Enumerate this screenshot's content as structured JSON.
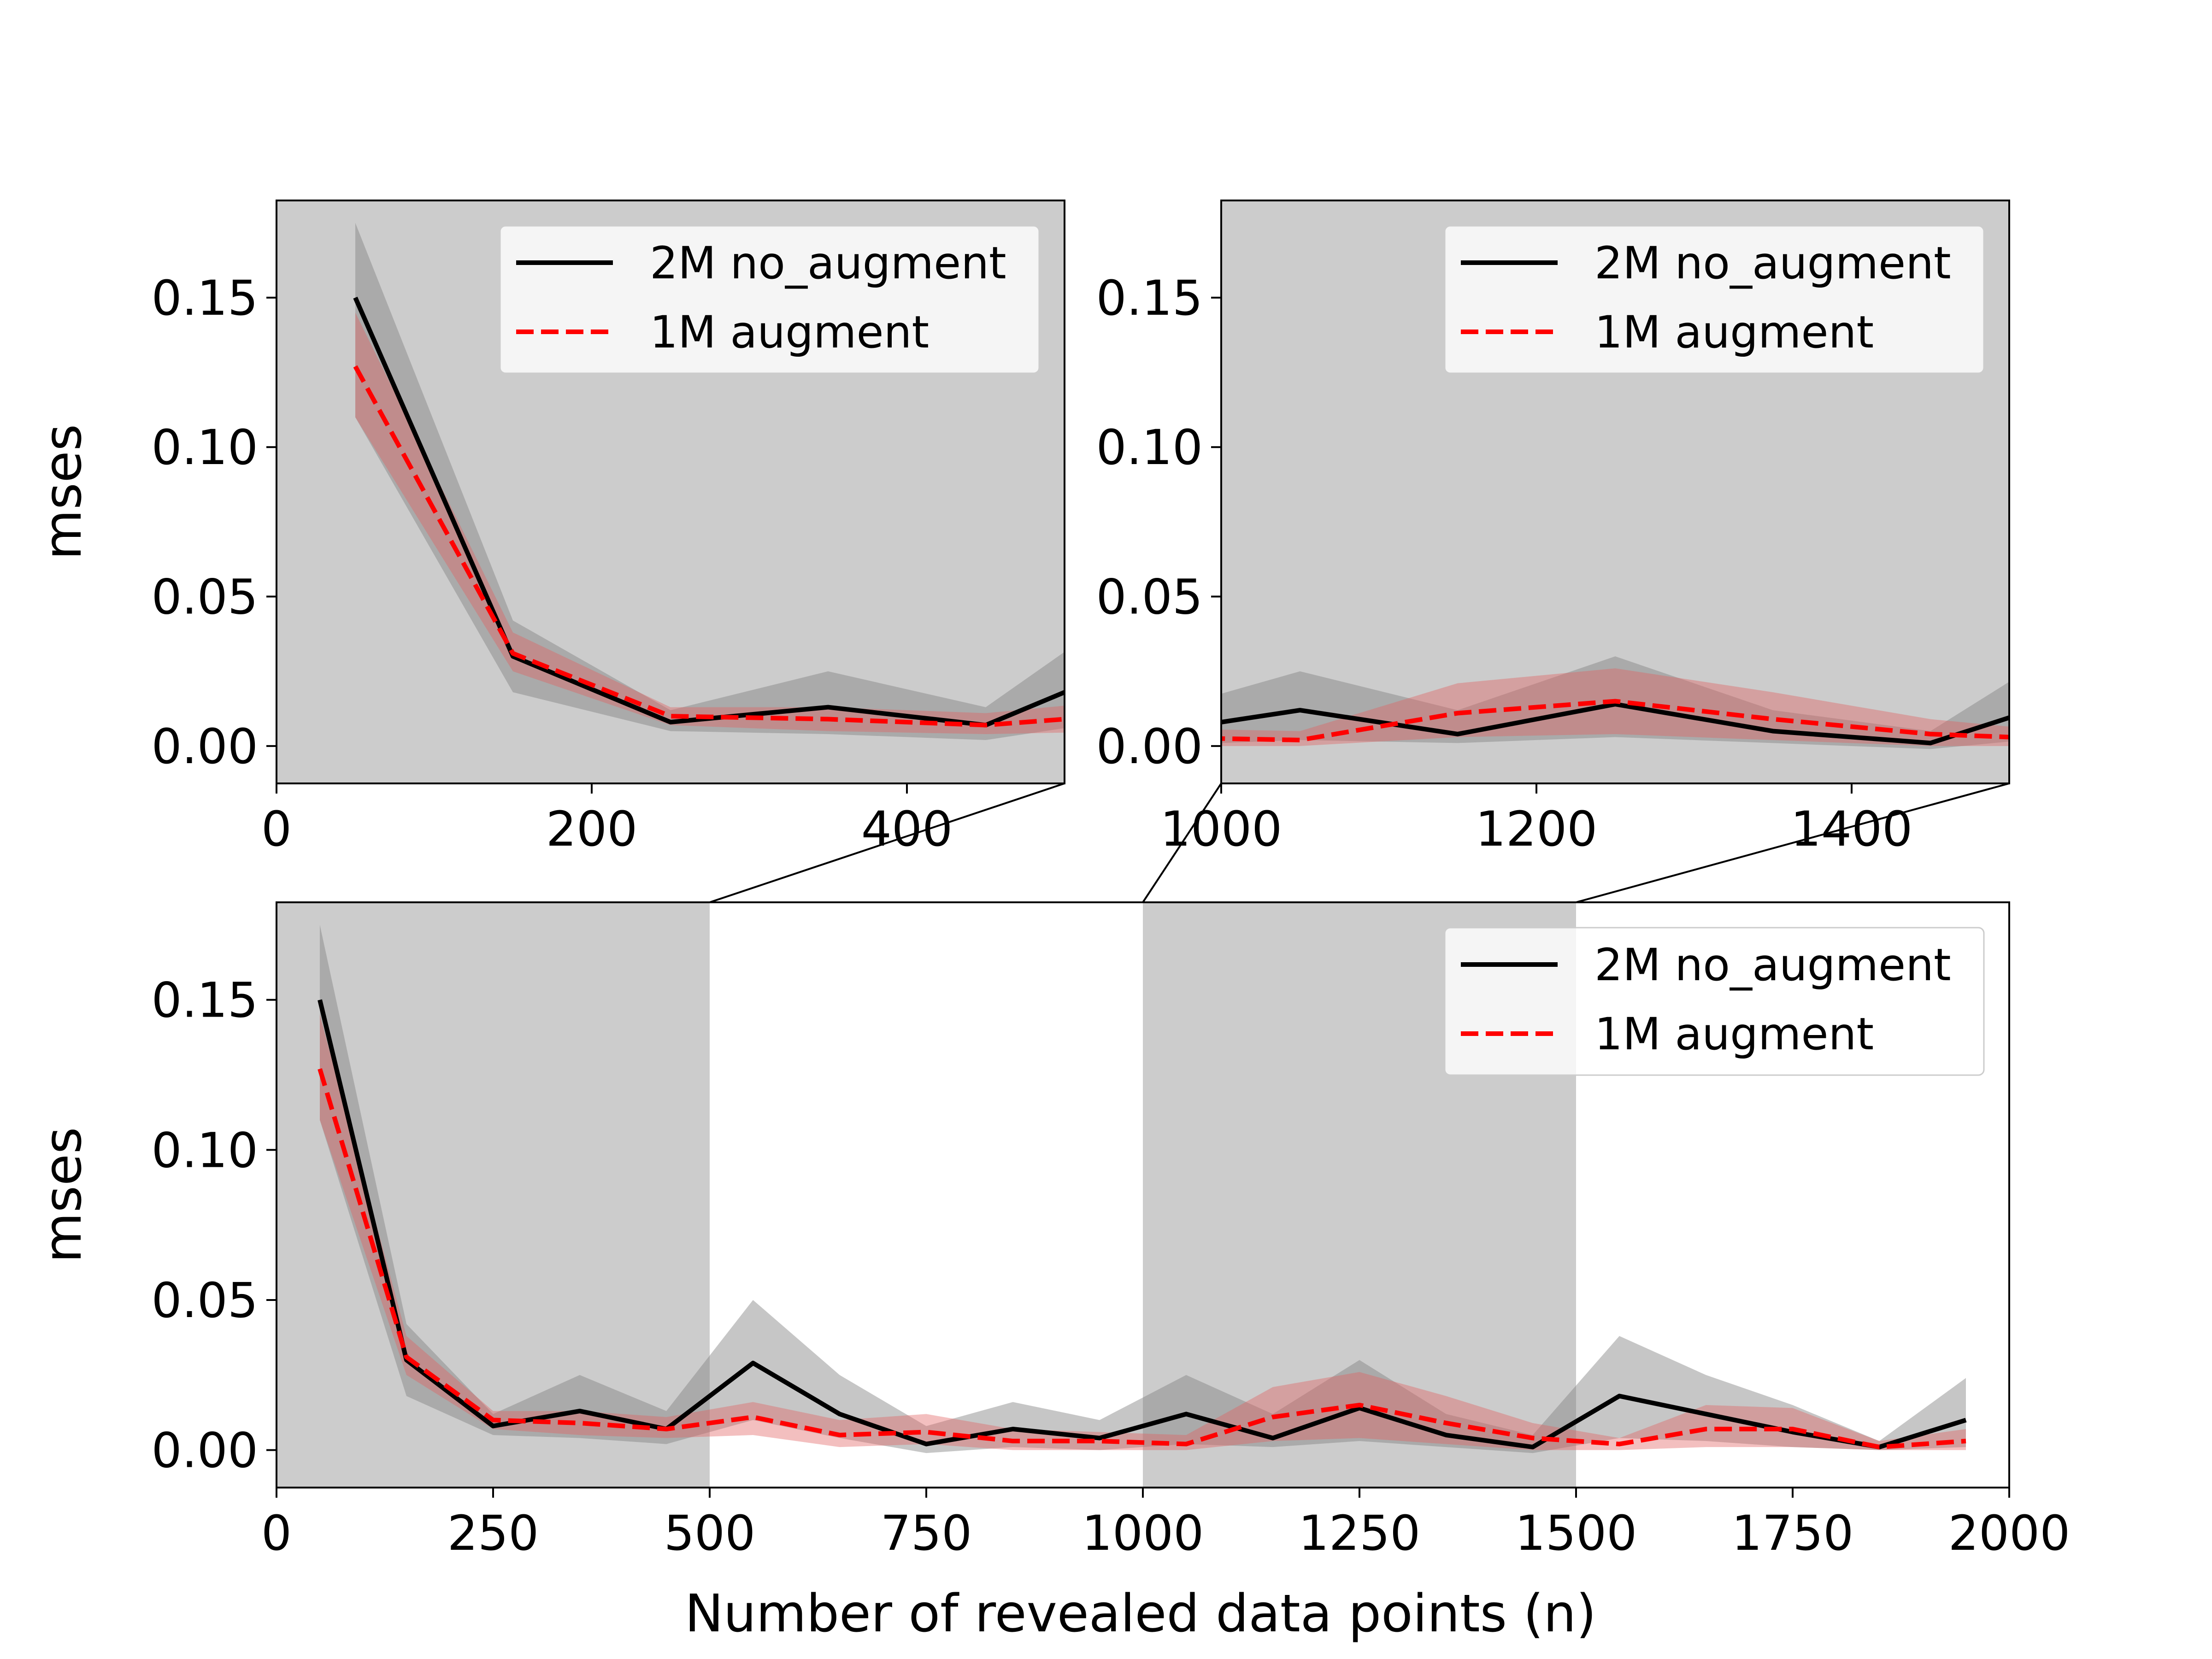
{
  "chart_data": [
    {
      "id": "zoom-left",
      "type": "line",
      "xlim": [
        0,
        500
      ],
      "ylim": [
        -0.0125,
        0.1825
      ],
      "x_ticks": [
        "0",
        "200",
        "400"
      ],
      "y_ticks": [
        "0.00",
        "0.05",
        "0.10",
        "0.15"
      ],
      "ylabel": "mses",
      "xlabel": "",
      "legend_position": "top-right",
      "background": "#cccccc"
    },
    {
      "id": "zoom-right",
      "type": "line",
      "xlim": [
        1000,
        1500
      ],
      "ylim": [
        -0.0125,
        0.1825
      ],
      "x_ticks": [
        "1000",
        "1200",
        "1400"
      ],
      "y_ticks": [
        "0.00",
        "0.05",
        "0.10",
        "0.15"
      ],
      "ylabel": "",
      "xlabel": "",
      "legend_position": "top-right",
      "background": "#cccccc"
    },
    {
      "id": "main",
      "type": "line",
      "xlim": [
        0,
        2000
      ],
      "ylim": [
        -0.0125,
        0.1825
      ],
      "x_ticks": [
        "0",
        "250",
        "500",
        "750",
        "1000",
        "1250",
        "1500",
        "1750",
        "2000"
      ],
      "y_ticks": [
        "0.00",
        "0.05",
        "0.10",
        "0.15"
      ],
      "ylabel": "mses",
      "xlabel": "Number of revealed data points (n)",
      "legend_position": "top-right",
      "highlighted_ranges": [
        [
          0,
          500
        ],
        [
          1000,
          1500
        ]
      ],
      "highlight_color": "#cccccc"
    }
  ],
  "series": [
    {
      "name": "2M no_augment",
      "color": "#000000",
      "band_color": "#808080",
      "style": "solid",
      "x": [
        50,
        150,
        250,
        350,
        450,
        550,
        650,
        750,
        850,
        950,
        1050,
        1150,
        1250,
        1350,
        1450,
        1550,
        1650,
        1750,
        1850,
        1950
      ],
      "y": [
        0.15,
        0.03,
        0.008,
        0.013,
        0.007,
        0.029,
        0.012,
        0.002,
        0.007,
        0.004,
        0.012,
        0.004,
        0.014,
        0.005,
        0.001,
        0.018,
        0.012,
        0.006,
        0.001,
        0.01
      ],
      "lower": [
        0.11,
        0.018,
        0.005,
        0.004,
        0.002,
        0.01,
        0.004,
        -0.001,
        0.001,
        0.0,
        0.002,
        0.001,
        0.003,
        0.001,
        -0.001,
        0.004,
        0.003,
        0.001,
        0.0,
        0.001
      ],
      "upper": [
        0.175,
        0.042,
        0.012,
        0.025,
        0.013,
        0.05,
        0.025,
        0.008,
        0.016,
        0.01,
        0.025,
        0.012,
        0.03,
        0.012,
        0.005,
        0.038,
        0.025,
        0.015,
        0.003,
        0.024
      ]
    },
    {
      "name": "1M augment",
      "color": "#ff0000",
      "band_color": "#e06060",
      "style": "dashed",
      "x": [
        50,
        150,
        250,
        350,
        450,
        550,
        650,
        750,
        850,
        950,
        1050,
        1150,
        1250,
        1350,
        1450,
        1550,
        1650,
        1750,
        1850,
        1950
      ],
      "y": [
        0.127,
        0.031,
        0.01,
        0.009,
        0.007,
        0.011,
        0.005,
        0.006,
        0.003,
        0.003,
        0.002,
        0.011,
        0.015,
        0.009,
        0.004,
        0.002,
        0.007,
        0.007,
        0.001,
        0.003
      ],
      "lower": [
        0.11,
        0.025,
        0.007,
        0.005,
        0.004,
        0.005,
        0.001,
        0.002,
        0.0,
        0.0,
        0.0,
        0.003,
        0.004,
        0.002,
        0.0,
        0.0,
        0.001,
        0.001,
        0.0,
        0.0
      ],
      "upper": [
        0.145,
        0.038,
        0.013,
        0.013,
        0.011,
        0.016,
        0.01,
        0.012,
        0.007,
        0.006,
        0.005,
        0.021,
        0.026,
        0.018,
        0.009,
        0.004,
        0.015,
        0.014,
        0.003,
        0.007
      ]
    }
  ],
  "legend": {
    "items": [
      {
        "label": "2M no_augment",
        "color": "#000000",
        "style": "solid"
      },
      {
        "label": "1M augment",
        "color": "#ff0000",
        "style": "dashed"
      }
    ]
  }
}
